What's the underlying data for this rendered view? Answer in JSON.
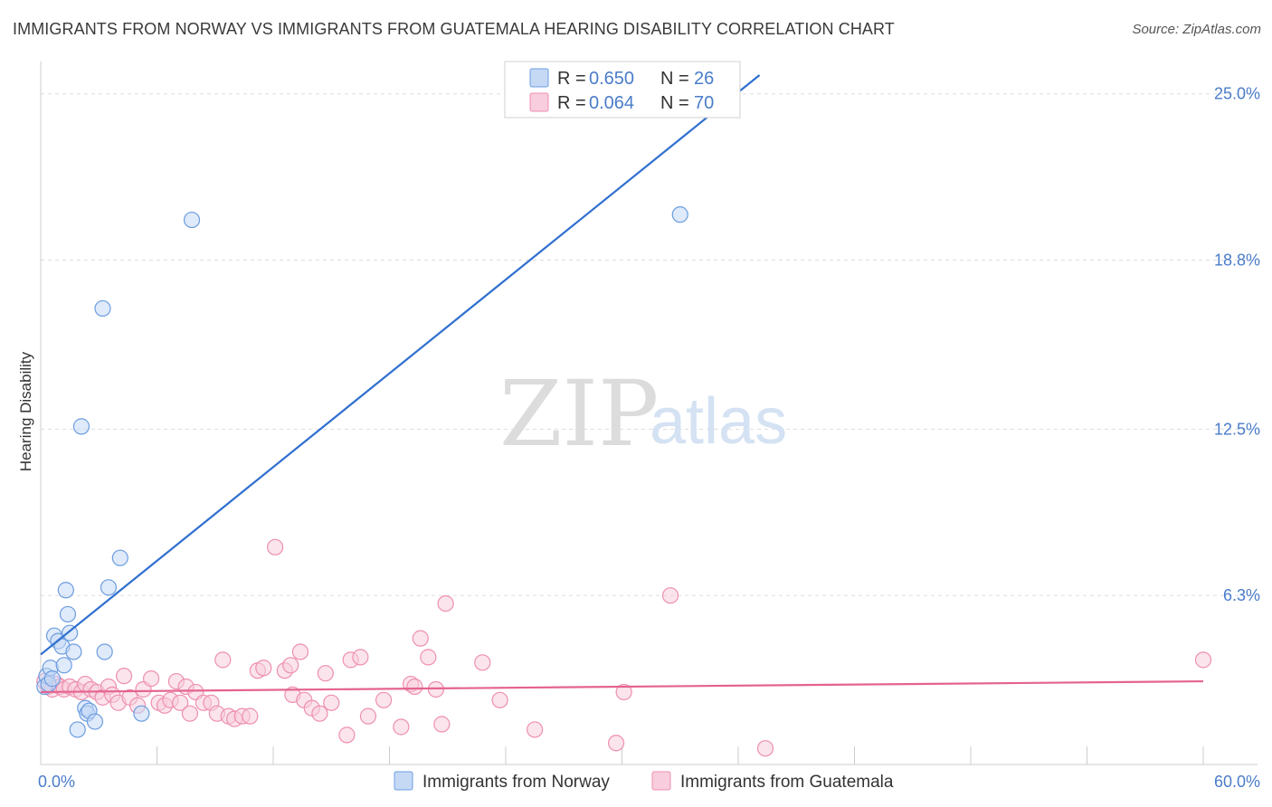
{
  "title": "IMMIGRANTS FROM NORWAY VS IMMIGRANTS FROM GUATEMALA HEARING DISABILITY CORRELATION CHART",
  "source": "Source: ZipAtlas.com",
  "watermark": {
    "zip": "ZIP",
    "atlas": "atlas"
  },
  "colors": {
    "norway": "#6d9de0",
    "norway_fill": "#c5d9f5",
    "norway_line": "#2f6fcf",
    "guatemala": "#ee8fb0",
    "guatemala_fill": "#f8cddd",
    "guatemala_line": "#e4638f",
    "grid": "#dddddd",
    "axis_text": "#4a7cc9"
  },
  "legend": {
    "rows": [
      {
        "r_label": "R = ",
        "r_value": "0.650",
        "n_label": "N = ",
        "n_value": "26"
      },
      {
        "r_label": "R = ",
        "r_value": "0.064",
        "n_label": "N = ",
        "n_value": "70"
      }
    ]
  },
  "bottom_legend": {
    "norway": "Immigrants from Norway",
    "guatemala": "Immigrants from Guatemala"
  },
  "chart_data": {
    "type": "scatter",
    "title": "IMMIGRANTS FROM NORWAY VS IMMIGRANTS FROM GUATEMALA HEARING DISABILITY CORRELATION CHART",
    "xlabel": "",
    "ylabel": "Hearing Disability",
    "xlim": [
      0,
      60
    ],
    "ylim": [
      0,
      25.8
    ],
    "x_tick_labels": [
      {
        "value": 0,
        "label": "0.0%"
      },
      {
        "value": 60,
        "label": "60.0%"
      }
    ],
    "y_tick_labels": [
      {
        "value": 6.3,
        "label": "6.3%"
      },
      {
        "value": 12.5,
        "label": "12.5%"
      },
      {
        "value": 18.8,
        "label": "18.8%"
      },
      {
        "value": 25.0,
        "label": "25.0%"
      }
    ],
    "x_minor_ticks": [
      0,
      6,
      12,
      18,
      24,
      30,
      36,
      42,
      48,
      54,
      60
    ],
    "series": [
      {
        "name": "Immigrants from Norway",
        "r": 0.65,
        "n": 26,
        "trend": {
          "x0": 0,
          "y0": 4.1,
          "x1": 37.1,
          "y1": 25.7
        },
        "points": [
          [
            0.2,
            2.9
          ],
          [
            0.3,
            3.3
          ],
          [
            0.4,
            3.0
          ],
          [
            0.5,
            3.6
          ],
          [
            0.6,
            3.2
          ],
          [
            0.7,
            4.8
          ],
          [
            0.9,
            4.6
          ],
          [
            1.1,
            4.4
          ],
          [
            1.2,
            3.7
          ],
          [
            1.3,
            6.5
          ],
          [
            1.4,
            5.6
          ],
          [
            1.5,
            4.9
          ],
          [
            1.7,
            4.2
          ],
          [
            1.9,
            1.3
          ],
          [
            2.1,
            12.6
          ],
          [
            2.3,
            2.1
          ],
          [
            2.4,
            1.9
          ],
          [
            2.5,
            2.0
          ],
          [
            2.8,
            1.6
          ],
          [
            3.2,
            17.0
          ],
          [
            3.3,
            4.2
          ],
          [
            3.5,
            6.6
          ],
          [
            4.1,
            7.7
          ],
          [
            5.2,
            1.9
          ],
          [
            7.8,
            20.3
          ],
          [
            33.0,
            20.5
          ]
        ]
      },
      {
        "name": "Immigrants from Guatemala",
        "r": 0.064,
        "n": 70,
        "trend": {
          "x0": 0,
          "y0": 2.7,
          "x1": 60,
          "y1": 3.1
        },
        "points": [
          [
            0.2,
            3.1
          ],
          [
            0.4,
            2.9
          ],
          [
            0.6,
            2.8
          ],
          [
            0.8,
            3.0
          ],
          [
            1.0,
            2.9
          ],
          [
            1.2,
            2.8
          ],
          [
            1.5,
            2.9
          ],
          [
            1.8,
            2.8
          ],
          [
            2.1,
            2.7
          ],
          [
            2.3,
            3.0
          ],
          [
            2.6,
            2.8
          ],
          [
            2.9,
            2.7
          ],
          [
            3.2,
            2.5
          ],
          [
            3.5,
            2.9
          ],
          [
            3.7,
            2.6
          ],
          [
            4.0,
            2.3
          ],
          [
            4.3,
            3.3
          ],
          [
            4.6,
            2.5
          ],
          [
            5.0,
            2.2
          ],
          [
            5.3,
            2.8
          ],
          [
            5.7,
            3.2
          ],
          [
            6.1,
            2.3
          ],
          [
            6.4,
            2.2
          ],
          [
            6.7,
            2.4
          ],
          [
            7.0,
            3.1
          ],
          [
            7.2,
            2.3
          ],
          [
            7.5,
            2.9
          ],
          [
            7.7,
            1.9
          ],
          [
            8.0,
            2.7
          ],
          [
            8.4,
            2.3
          ],
          [
            8.8,
            2.3
          ],
          [
            9.1,
            1.9
          ],
          [
            9.4,
            3.9
          ],
          [
            9.7,
            1.8
          ],
          [
            10.0,
            1.7
          ],
          [
            10.4,
            1.8
          ],
          [
            10.8,
            1.8
          ],
          [
            11.2,
            3.5
          ],
          [
            11.5,
            3.6
          ],
          [
            12.1,
            8.1
          ],
          [
            12.6,
            3.5
          ],
          [
            12.9,
            3.7
          ],
          [
            13.0,
            2.6
          ],
          [
            13.4,
            4.2
          ],
          [
            13.6,
            2.4
          ],
          [
            14.0,
            2.1
          ],
          [
            14.4,
            1.9
          ],
          [
            14.7,
            3.4
          ],
          [
            15.0,
            2.3
          ],
          [
            15.8,
            1.1
          ],
          [
            16.0,
            3.9
          ],
          [
            16.5,
            4.0
          ],
          [
            16.9,
            1.8
          ],
          [
            17.7,
            2.4
          ],
          [
            18.6,
            1.4
          ],
          [
            19.1,
            3.0
          ],
          [
            19.3,
            2.9
          ],
          [
            19.6,
            4.7
          ],
          [
            20.0,
            4.0
          ],
          [
            20.4,
            2.8
          ],
          [
            20.7,
            1.5
          ],
          [
            20.9,
            6.0
          ],
          [
            22.8,
            3.8
          ],
          [
            23.7,
            2.4
          ],
          [
            25.5,
            1.3
          ],
          [
            29.7,
            0.8
          ],
          [
            30.1,
            2.7
          ],
          [
            32.5,
            6.3
          ],
          [
            37.4,
            0.6
          ],
          [
            60.0,
            3.9
          ]
        ]
      }
    ]
  }
}
